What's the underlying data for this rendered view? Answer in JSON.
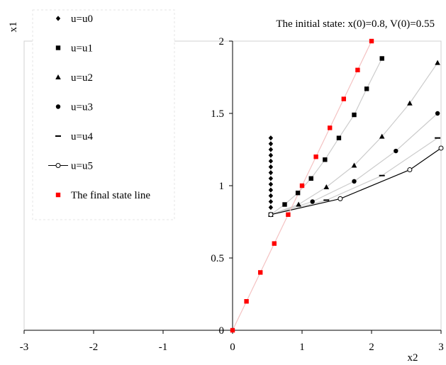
{
  "chart_data": {
    "type": "scatter",
    "title": "",
    "annotation": "The initial state: x(0)=0.8, V(0)=0.55",
    "xlabel": "x2",
    "ylabel": "x1",
    "xlim": [
      -3,
      3
    ],
    "ylim": [
      0,
      2
    ],
    "x_ticks": [
      -3,
      -2,
      -1,
      0,
      1,
      2,
      3
    ],
    "y_ticks": [
      0,
      0.5,
      1,
      1.5,
      2
    ],
    "x_tick_labels": [
      "-3",
      "-2",
      "-1",
      "0",
      "1",
      "2",
      "3"
    ],
    "y_tick_labels": [
      "0",
      "0.5",
      "1",
      "1.5",
      "2"
    ],
    "grid": false,
    "legend_position": "top-left",
    "series": [
      {
        "name": "u=u0",
        "marker": "diamond",
        "color": "#000000",
        "curve_color": "",
        "points": [
          [
            0.55,
            0.85
          ],
          [
            0.55,
            0.89
          ],
          [
            0.55,
            0.93
          ],
          [
            0.55,
            0.97
          ],
          [
            0.55,
            1.01
          ],
          [
            0.55,
            1.05
          ],
          [
            0.55,
            1.09
          ],
          [
            0.55,
            1.13
          ],
          [
            0.55,
            1.17
          ],
          [
            0.55,
            1.21
          ],
          [
            0.55,
            1.25
          ],
          [
            0.55,
            1.29
          ],
          [
            0.55,
            1.33
          ]
        ]
      },
      {
        "name": "u=u1",
        "marker": "square",
        "color": "#000000",
        "curve_color": "#cccccc",
        "points": [
          [
            0.55,
            0.8
          ],
          [
            0.75,
            0.87
          ],
          [
            0.94,
            0.95
          ],
          [
            1.13,
            1.05
          ],
          [
            1.33,
            1.18
          ],
          [
            1.53,
            1.33
          ],
          [
            1.75,
            1.49
          ],
          [
            1.93,
            1.67
          ],
          [
            2.15,
            1.88
          ]
        ]
      },
      {
        "name": "u=u2",
        "marker": "triangle",
        "color": "#000000",
        "curve_color": "#cccccc",
        "points": [
          [
            0.55,
            0.8
          ],
          [
            0.95,
            0.87
          ],
          [
            1.35,
            0.99
          ],
          [
            1.75,
            1.14
          ],
          [
            2.15,
            1.34
          ],
          [
            2.55,
            1.57
          ],
          [
            2.95,
            1.85
          ]
        ]
      },
      {
        "name": "u=u3",
        "marker": "circle",
        "color": "#000000",
        "curve_color": "#cccccc",
        "points": [
          [
            0.55,
            0.8
          ],
          [
            1.15,
            0.89
          ],
          [
            1.75,
            1.03
          ],
          [
            2.35,
            1.24
          ],
          [
            2.95,
            1.5
          ]
        ]
      },
      {
        "name": "u=u4",
        "marker": "dash",
        "color": "#000000",
        "curve_color": "#cccccc",
        "points": [
          [
            0.55,
            0.8
          ],
          [
            1.35,
            0.9
          ],
          [
            2.15,
            1.07
          ],
          [
            2.95,
            1.33
          ]
        ]
      },
      {
        "name": "u=u5",
        "marker": "open-circle",
        "color": "#000000",
        "curve_color": "#000000",
        "points": [
          [
            0.55,
            0.8
          ],
          [
            1.55,
            0.91
          ],
          [
            2.55,
            1.11
          ],
          [
            3.0,
            1.26
          ]
        ]
      },
      {
        "name": "The final state line",
        "marker": "square",
        "color": "#ff0000",
        "curve_color": "#f4c2c2",
        "points": [
          [
            0,
            0
          ],
          [
            0.2,
            0.2
          ],
          [
            0.4,
            0.4
          ],
          [
            0.6,
            0.6
          ],
          [
            0.8,
            0.8
          ],
          [
            1.0,
            1.0
          ],
          [
            1.2,
            1.2
          ],
          [
            1.4,
            1.4
          ],
          [
            1.6,
            1.6
          ],
          [
            1.8,
            1.8
          ],
          [
            2.0,
            2.0
          ]
        ]
      }
    ]
  }
}
